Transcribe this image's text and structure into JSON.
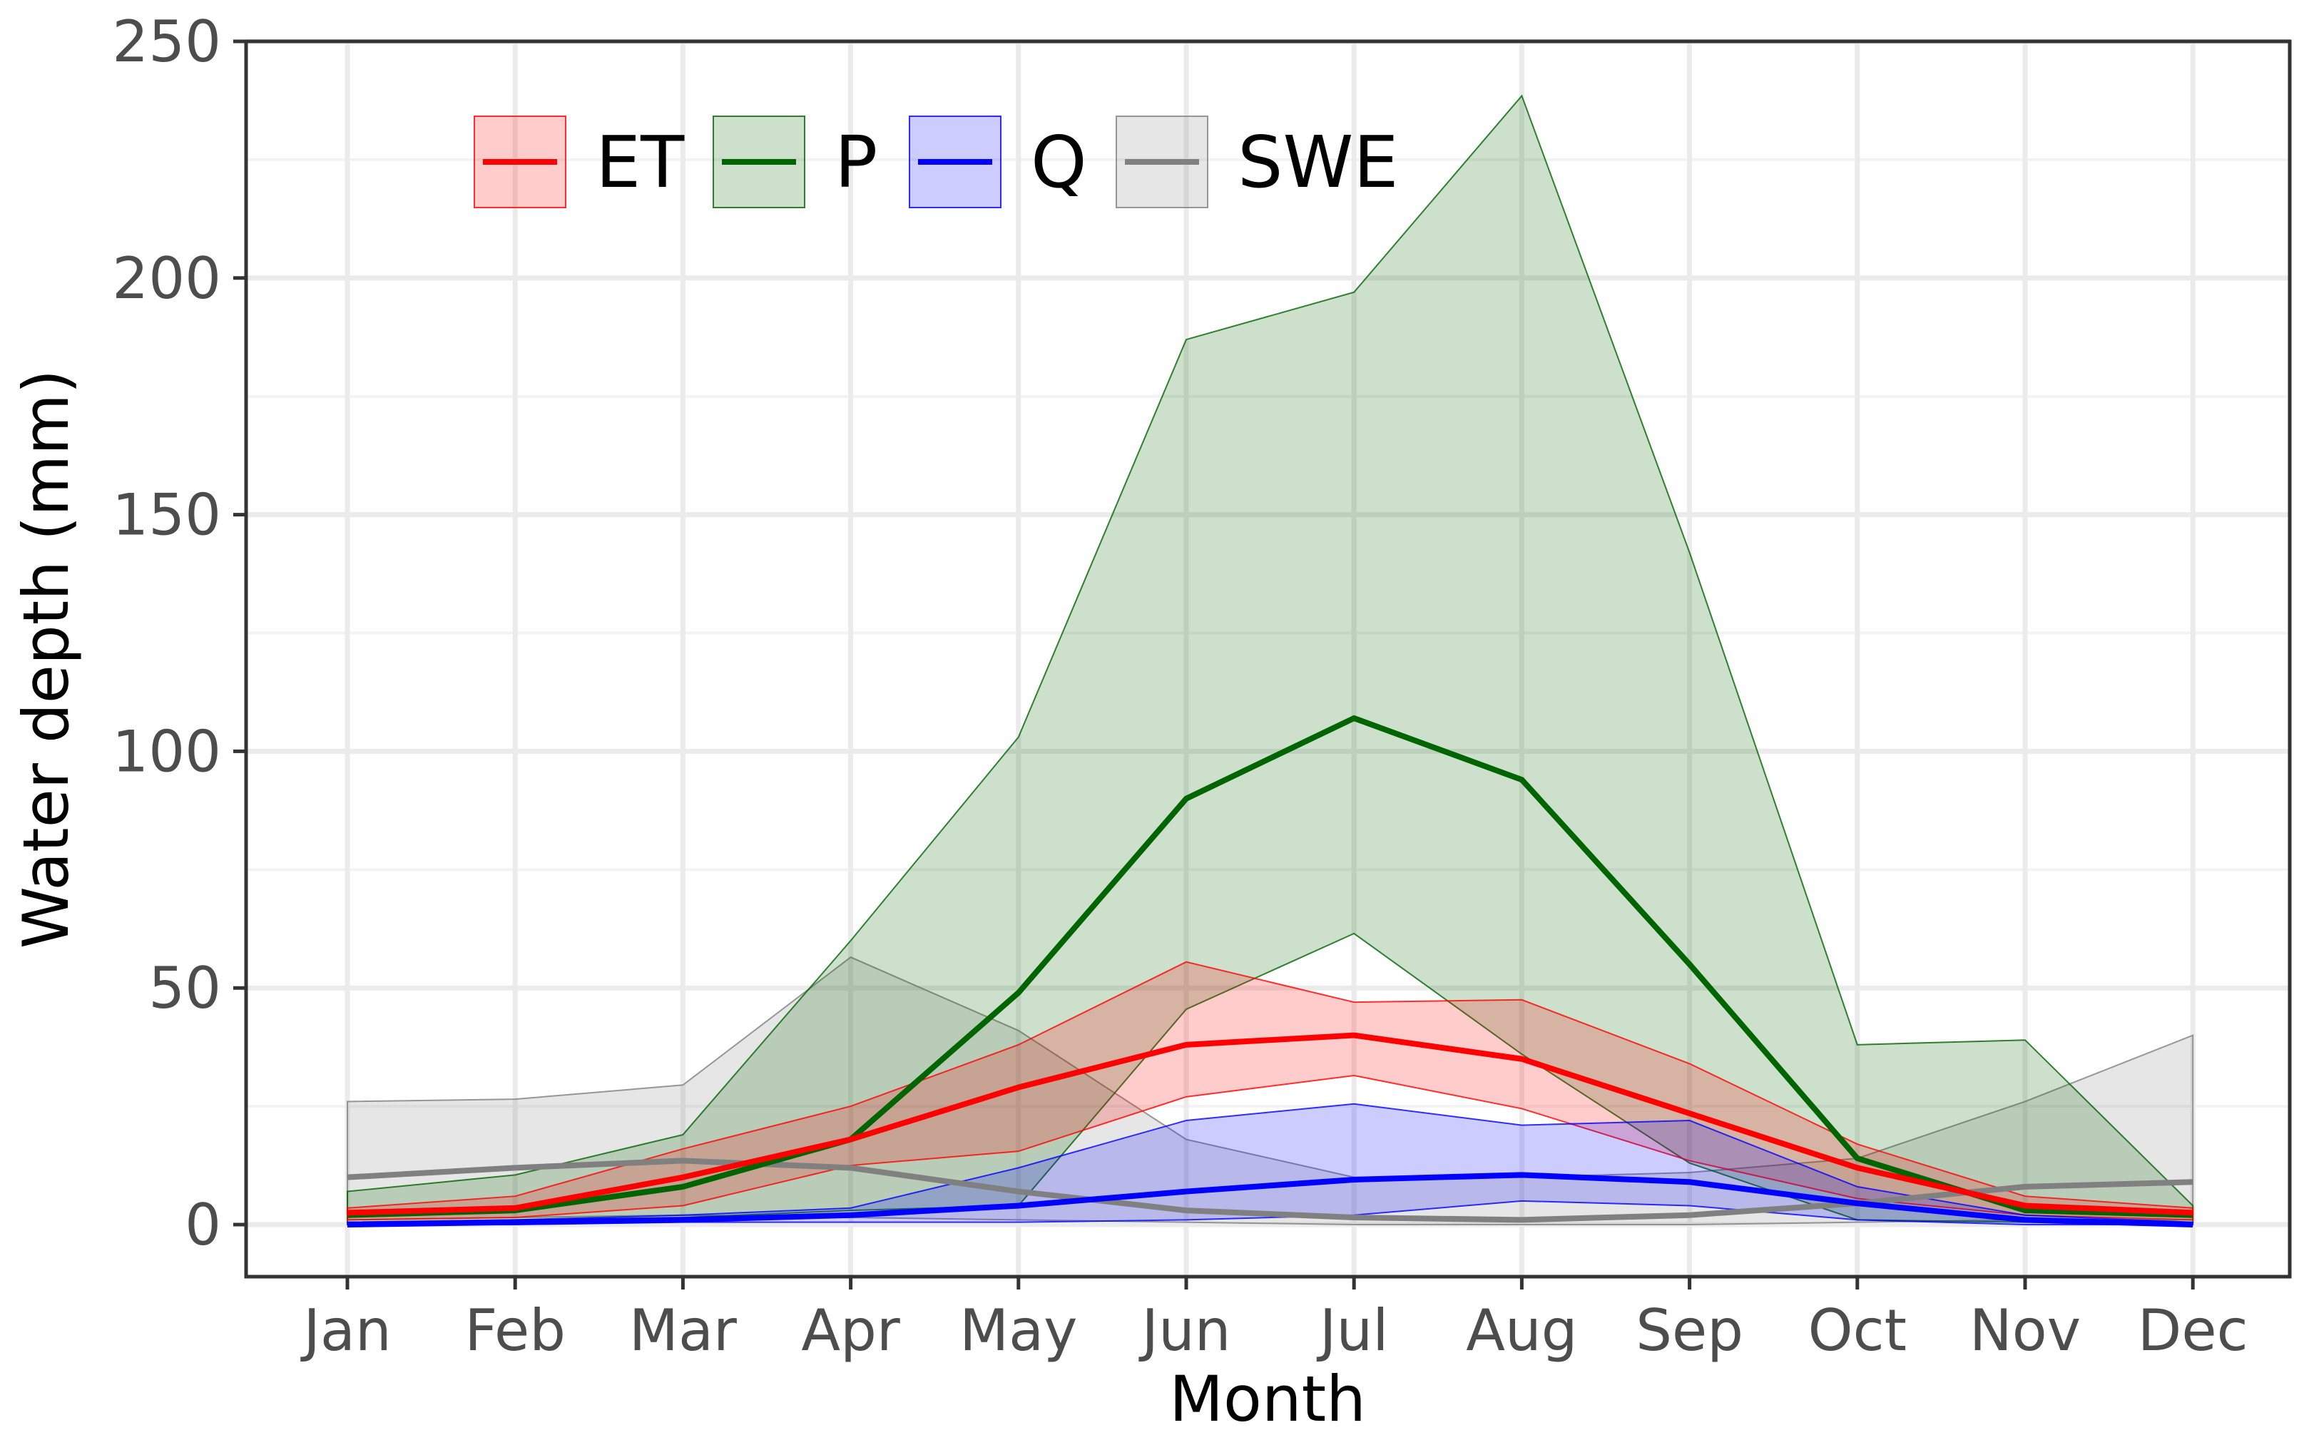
{
  "chart_data": {
    "type": "area",
    "title": "",
    "xlabel": "Month",
    "ylabel": "Water depth (mm)",
    "ylim": [
      -11,
      250
    ],
    "yticks": [
      0,
      50,
      100,
      150,
      200,
      250
    ],
    "categories": [
      "Jan",
      "Feb",
      "Mar",
      "Apr",
      "May",
      "Jun",
      "Jul",
      "Aug",
      "Sep",
      "Oct",
      "Nov",
      "Dec"
    ],
    "grid": true,
    "legend_position": "top-left",
    "series": [
      {
        "name": "SWE",
        "color": "#808080",
        "mean": [
          10,
          12,
          13.5,
          12,
          7,
          3,
          1.5,
          1,
          2,
          4.5,
          8,
          9
        ],
        "lower": [
          1,
          1.5,
          2,
          1.5,
          1,
          0.5,
          0,
          0,
          0,
          0.5,
          1,
          1
        ],
        "upper": [
          26,
          26.5,
          29.5,
          56.5,
          41,
          18,
          10,
          10,
          11,
          14,
          26,
          40
        ]
      },
      {
        "name": "P",
        "color": "#006400",
        "mean": [
          2,
          3,
          8,
          18,
          49,
          90,
          107,
          94,
          55,
          14,
          3,
          2
        ],
        "lower": [
          0.5,
          1,
          1.5,
          3,
          4,
          45.5,
          61.5,
          36,
          13,
          1,
          0.5,
          0.5
        ],
        "upper": [
          7,
          10.5,
          19,
          60,
          103,
          187,
          197,
          238.5,
          142,
          38,
          39,
          4
        ]
      },
      {
        "name": "ET",
        "color": "#ff0000",
        "mean": [
          2.5,
          3.5,
          10,
          18,
          29,
          38,
          40,
          35,
          23.5,
          12,
          4,
          2.5
        ],
        "lower": [
          1,
          1.5,
          4,
          12.5,
          15.5,
          27,
          31.5,
          24.5,
          13.5,
          5.5,
          2,
          1
        ],
        "upper": [
          3.5,
          6,
          16,
          25,
          38,
          55.5,
          47,
          47.5,
          34,
          17,
          6,
          3.5
        ]
      },
      {
        "name": "Q",
        "color": "#0000ff",
        "mean": [
          0,
          0.5,
          1,
          2,
          4,
          7,
          9.5,
          10.5,
          9,
          4.5,
          1,
          0
        ],
        "lower": [
          0,
          0,
          0.5,
          0.5,
          0.5,
          1,
          2,
          5,
          4,
          1,
          0,
          0
        ],
        "upper": [
          0.5,
          1,
          2,
          3.5,
          12,
          22,
          25.5,
          21,
          22,
          8,
          2,
          0.5
        ]
      }
    ],
    "legend_order": [
      "ET",
      "P",
      "Q",
      "SWE"
    ]
  }
}
